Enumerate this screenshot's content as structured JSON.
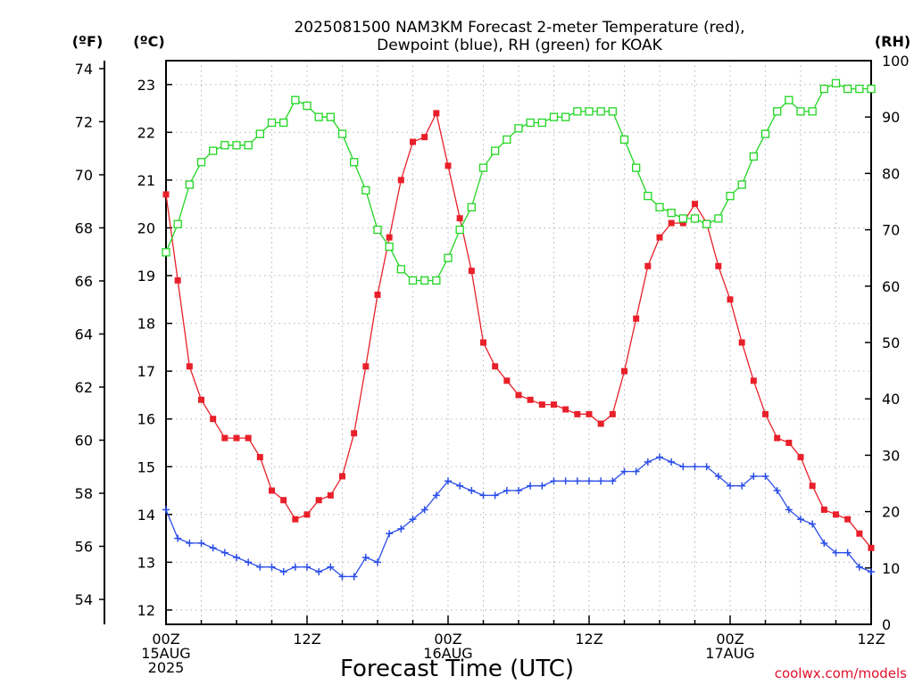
{
  "title_line1": "2025081500 NAM3KM Forecast 2-meter Temperature (red),",
  "title_line2": "Dewpoint (blue), RH (green) for KOAK",
  "unit_f": "(ºF)",
  "unit_c": "(ºC)",
  "unit_rh": "(RH)",
  "x_title": "Forecast Time (UTC)",
  "credit": "coolwx.com/models",
  "chart_data": {
    "type": "line",
    "x": [
      0,
      1,
      2,
      3,
      4,
      5,
      6,
      7,
      8,
      9,
      10,
      11,
      12,
      13,
      14,
      15,
      16,
      17,
      18,
      19,
      20,
      21,
      22,
      23,
      24,
      25,
      26,
      27,
      28,
      29,
      30,
      31,
      32,
      33,
      34,
      35,
      36,
      37,
      38,
      39,
      40,
      41,
      42,
      43,
      44,
      45,
      46,
      47,
      48,
      49,
      50,
      51,
      52,
      53,
      54,
      55,
      56,
      57,
      58,
      59,
      60
    ],
    "xlim": [
      0,
      60
    ],
    "x_ticks": [
      {
        "x": 0,
        "labels": [
          "00Z",
          "15AUG",
          "2025"
        ]
      },
      {
        "x": 12,
        "labels": [
          "12Z"
        ]
      },
      {
        "x": 24,
        "labels": [
          "00Z",
          "16AUG"
        ]
      },
      {
        "x": 36,
        "labels": [
          "12Z"
        ]
      },
      {
        "x": 48,
        "labels": [
          "00Z",
          "17AUG"
        ]
      },
      {
        "x": 60,
        "labels": [
          "12Z"
        ]
      }
    ],
    "y_celsius": {
      "label": "(ºC)",
      "lim": [
        11.7,
        23.5
      ],
      "ticks": [
        12,
        13,
        14,
        15,
        16,
        17,
        18,
        19,
        20,
        21,
        22,
        23
      ]
    },
    "y_fahrenheit": {
      "label": "(ºF)",
      "lim": [
        53.06,
        74.3
      ],
      "ticks": [
        54,
        56,
        58,
        60,
        62,
        64,
        66,
        68,
        70,
        72,
        74
      ]
    },
    "y_rh": {
      "label": "(RH)",
      "lim": [
        0,
        100
      ],
      "ticks": [
        0,
        10,
        20,
        30,
        40,
        50,
        60,
        70,
        80,
        90,
        100
      ]
    },
    "grid": true,
    "series": [
      {
        "name": "Temperature",
        "axis": "celsius",
        "color": "#e8202a",
        "marker": "filled-square",
        "values": [
          20.7,
          18.9,
          17.1,
          16.4,
          16.0,
          15.6,
          15.6,
          15.6,
          15.2,
          14.5,
          14.3,
          13.9,
          14.0,
          14.3,
          14.4,
          14.8,
          15.7,
          17.1,
          18.6,
          19.8,
          21.0,
          21.8,
          21.9,
          22.4,
          21.3,
          20.2,
          19.1,
          17.6,
          17.1,
          16.8,
          16.5,
          16.4,
          16.3,
          16.3,
          16.2,
          16.1,
          16.1,
          15.9,
          16.1,
          17.0,
          18.1,
          19.2,
          19.8,
          20.1,
          20.1,
          20.5,
          20.1,
          19.2,
          18.5,
          17.6,
          16.8,
          16.1,
          15.6,
          15.5,
          15.2,
          14.6,
          14.1,
          14.0,
          13.9,
          13.6,
          13.3
        ]
      },
      {
        "name": "Dewpoint",
        "axis": "celsius",
        "color": "#2b4ee8",
        "marker": "plus",
        "values": [
          14.1,
          13.5,
          13.4,
          13.4,
          13.3,
          13.2,
          13.1,
          13.0,
          12.9,
          12.9,
          12.8,
          12.9,
          12.9,
          12.8,
          12.9,
          12.7,
          12.7,
          13.1,
          13.0,
          13.6,
          13.7,
          13.9,
          14.1,
          14.4,
          14.7,
          14.6,
          14.5,
          14.4,
          14.4,
          14.5,
          14.5,
          14.6,
          14.6,
          14.7,
          14.7,
          14.7,
          14.7,
          14.7,
          14.7,
          14.9,
          14.9,
          15.1,
          15.2,
          15.1,
          15.0,
          15.0,
          15.0,
          14.8,
          14.6,
          14.6,
          14.8,
          14.8,
          14.5,
          14.1,
          13.9,
          13.8,
          13.4,
          13.2,
          13.2,
          12.9,
          12.8
        ]
      },
      {
        "name": "RH",
        "axis": "rh",
        "color": "#22d624",
        "marker": "open-square",
        "values": [
          66,
          71,
          78,
          82,
          84,
          85,
          85,
          85,
          87,
          89,
          89,
          93,
          92,
          90,
          90,
          87,
          82,
          77,
          70,
          67,
          63,
          61,
          61,
          61,
          65,
          70,
          74,
          81,
          84,
          86,
          88,
          89,
          89,
          90,
          90,
          91,
          91,
          91,
          91,
          86,
          81,
          76,
          74,
          73,
          72,
          72,
          71,
          72,
          76,
          78,
          83,
          87,
          91,
          93,
          91,
          91,
          95,
          96,
          95,
          95,
          95
        ]
      }
    ]
  }
}
